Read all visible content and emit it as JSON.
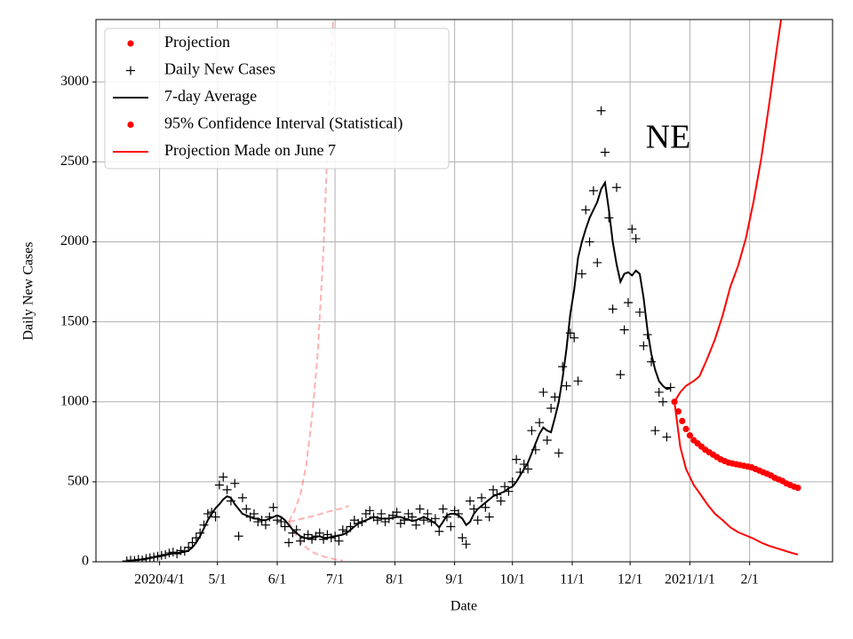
{
  "chart_data": {
    "type": "line",
    "annotation": "NE",
    "xlabel": "Date",
    "ylabel": "Daily New Cases",
    "grid": true,
    "legend": "upper left",
    "xlim": [
      "2020-02-28",
      "2021-03-16"
    ],
    "ylim": [
      0,
      3390
    ],
    "yticks": [
      0,
      500,
      1000,
      1500,
      2000,
      2500,
      3000
    ],
    "xticks": [
      {
        "value": "2020-04-01",
        "label": "2020/4/1"
      },
      {
        "value": "2020-05-01",
        "label": "5/1"
      },
      {
        "value": "2020-06-01",
        "label": "6/1"
      },
      {
        "value": "2020-07-01",
        "label": "7/1"
      },
      {
        "value": "2020-08-01",
        "label": "8/1"
      },
      {
        "value": "2020-09-01",
        "label": "9/1"
      },
      {
        "value": "2020-10-01",
        "label": "10/1"
      },
      {
        "value": "2020-11-01",
        "label": "11/1"
      },
      {
        "value": "2020-12-01",
        "label": "12/1"
      },
      {
        "value": "2021-01-01",
        "label": "2021/1/1"
      },
      {
        "value": "2021-02-01",
        "label": "2/1"
      }
    ],
    "x": [
      "2020-03-15",
      "2020-03-17",
      "2020-03-19",
      "2020-03-21",
      "2020-03-23",
      "2020-03-25",
      "2020-03-27",
      "2020-03-29",
      "2020-03-31",
      "2020-04-02",
      "2020-04-04",
      "2020-04-06",
      "2020-04-08",
      "2020-04-10",
      "2020-04-12",
      "2020-04-14",
      "2020-04-16",
      "2020-04-18",
      "2020-04-20",
      "2020-04-22",
      "2020-04-24",
      "2020-04-26",
      "2020-04-28",
      "2020-04-30",
      "2020-05-02",
      "2020-05-04",
      "2020-05-06",
      "2020-05-08",
      "2020-05-10",
      "2020-05-12",
      "2020-05-14",
      "2020-05-16",
      "2020-05-18",
      "2020-05-20",
      "2020-05-22",
      "2020-05-24",
      "2020-05-26",
      "2020-05-28",
      "2020-05-30",
      "2020-06-01",
      "2020-06-03",
      "2020-06-05",
      "2020-06-07",
      "2020-06-09",
      "2020-06-11",
      "2020-06-13",
      "2020-06-15",
      "2020-06-17",
      "2020-06-19",
      "2020-06-21",
      "2020-06-23",
      "2020-06-25",
      "2020-06-27",
      "2020-06-29",
      "2020-07-01",
      "2020-07-03",
      "2020-07-05",
      "2020-07-07",
      "2020-07-09",
      "2020-07-11",
      "2020-07-13",
      "2020-07-15",
      "2020-07-17",
      "2020-07-19",
      "2020-07-21",
      "2020-07-23",
      "2020-07-25",
      "2020-07-27",
      "2020-07-29",
      "2020-07-31",
      "2020-08-02",
      "2020-08-04",
      "2020-08-06",
      "2020-08-08",
      "2020-08-10",
      "2020-08-12",
      "2020-08-14",
      "2020-08-16",
      "2020-08-18",
      "2020-08-20",
      "2020-08-22",
      "2020-08-24",
      "2020-08-26",
      "2020-08-28",
      "2020-08-30",
      "2020-09-01",
      "2020-09-03",
      "2020-09-05",
      "2020-09-07",
      "2020-09-09",
      "2020-09-11",
      "2020-09-13",
      "2020-09-15",
      "2020-09-17",
      "2020-09-19",
      "2020-09-21",
      "2020-09-23",
      "2020-09-25",
      "2020-09-27",
      "2020-09-29",
      "2020-10-01",
      "2020-10-03",
      "2020-10-05",
      "2020-10-07",
      "2020-10-09",
      "2020-10-11",
      "2020-10-13",
      "2020-10-15",
      "2020-10-17",
      "2020-10-19",
      "2020-10-21",
      "2020-10-23",
      "2020-10-25",
      "2020-10-27",
      "2020-10-29",
      "2020-10-31",
      "2020-11-02",
      "2020-11-04",
      "2020-11-06",
      "2020-11-08",
      "2020-11-10",
      "2020-11-12",
      "2020-11-14",
      "2020-11-16",
      "2020-11-18",
      "2020-11-20",
      "2020-11-22",
      "2020-11-24",
      "2020-11-26",
      "2020-11-28",
      "2020-11-30",
      "2020-12-02",
      "2020-12-04",
      "2020-12-06",
      "2020-12-08",
      "2020-12-10",
      "2020-12-12",
      "2020-12-14",
      "2020-12-16",
      "2020-12-18",
      "2020-12-20",
      "2020-12-22"
    ],
    "series": [
      {
        "name": "Projection",
        "kind": "dots",
        "legend_marker": "dot",
        "color": "#ff0000",
        "x": [
          "2020-12-24",
          "2020-12-26",
          "2020-12-28",
          "2020-12-30",
          "2021-01-01",
          "2021-01-03",
          "2021-01-05",
          "2021-01-07",
          "2021-01-09",
          "2021-01-11",
          "2021-01-13",
          "2021-01-15",
          "2021-01-17",
          "2021-01-19",
          "2021-01-21",
          "2021-01-23",
          "2021-01-25",
          "2021-01-27",
          "2021-01-29",
          "2021-01-31",
          "2021-02-02",
          "2021-02-04",
          "2021-02-06",
          "2021-02-08",
          "2021-02-10",
          "2021-02-12",
          "2021-02-14",
          "2021-02-16",
          "2021-02-18",
          "2021-02-20",
          "2021-02-22",
          "2021-02-24",
          "2021-02-26"
        ],
        "values": [
          1000,
          940,
          880,
          830,
          790,
          760,
          740,
          720,
          700,
          685,
          670,
          655,
          640,
          630,
          620,
          615,
          610,
          605,
          600,
          595,
          590,
          580,
          570,
          560,
          550,
          540,
          525,
          515,
          505,
          490,
          480,
          470,
          462
        ]
      },
      {
        "name": "Daily New Cases",
        "kind": "plus",
        "legend_marker": "plus",
        "color": "#000000",
        "values": [
          5,
          10,
          8,
          15,
          12,
          20,
          25,
          30,
          35,
          40,
          45,
          55,
          60,
          50,
          70,
          65,
          90,
          120,
          150,
          180,
          230,
          300,
          310,
          280,
          480,
          530,
          450,
          380,
          490,
          160,
          400,
          330,
          280,
          300,
          250,
          260,
          230,
          280,
          340,
          260,
          250,
          220,
          120,
          180,
          200,
          130,
          150,
          170,
          140,
          160,
          180,
          140,
          170,
          150,
          160,
          130,
          200,
          190,
          220,
          260,
          240,
          250,
          300,
          320,
          280,
          260,
          300,
          250,
          270,
          290,
          310,
          240,
          260,
          300,
          280,
          230,
          330,
          260,
          300,
          250,
          270,
          190,
          330,
          280,
          220,
          320,
          300,
          150,
          110,
          380,
          330,
          260,
          400,
          340,
          280,
          450,
          420,
          380,
          470,
          440,
          500,
          640,
          560,
          610,
          580,
          820,
          700,
          870,
          1060,
          760,
          960,
          1030,
          680,
          1220,
          1100,
          1430,
          1400,
          1130,
          1800,
          2200,
          2000,
          2320,
          1870,
          2820,
          2560,
          2150,
          1580,
          2340,
          1170,
          1450,
          1620,
          2080,
          2020,
          1560,
          1350,
          1420,
          1250,
          820,
          1060,
          1000,
          780,
          1090
        ]
      },
      {
        "name": "7-day Average",
        "kind": "line",
        "legend_marker": "line",
        "color": "#000000",
        "values": [
          5,
          8,
          10,
          12,
          15,
          18,
          22,
          28,
          32,
          36,
          42,
          48,
          52,
          55,
          58,
          62,
          70,
          90,
          120,
          160,
          210,
          260,
          300,
          335,
          360,
          390,
          410,
          400,
          360,
          330,
          300,
          290,
          280,
          270,
          270,
          260,
          260,
          270,
          280,
          290,
          280,
          260,
          230,
          200,
          180,
          160,
          150,
          145,
          150,
          155,
          160,
          150,
          150,
          155,
          160,
          165,
          170,
          180,
          200,
          220,
          240,
          250,
          260,
          270,
          280,
          275,
          270,
          270,
          270,
          275,
          280,
          280,
          270,
          265,
          255,
          260,
          270,
          280,
          270,
          255,
          240,
          215,
          250,
          290,
          300,
          300,
          290,
          270,
          230,
          250,
          300,
          330,
          350,
          370,
          390,
          410,
          420,
          430,
          440,
          460,
          470,
          500,
          540,
          580,
          620,
          680,
          740,
          800,
          840,
          820,
          810,
          900,
          1000,
          1150,
          1330,
          1550,
          1700,
          1900,
          2000,
          2080,
          2150,
          2200,
          2250,
          2330,
          2370,
          2200,
          2000,
          1860,
          1750,
          1800,
          1810,
          1790,
          1820,
          1800,
          1650,
          1450,
          1300,
          1200,
          1130,
          1100,
          1080,
          1085
        ]
      },
      {
        "name": "95% Confidence Interval (Statistical)",
        "kind": "lines",
        "legend_marker": "dot",
        "color": "#ff0000",
        "lines": [
          {
            "x": [
              "2020-12-24",
              "2020-12-27",
              "2020-12-30",
              "2021-01-03",
              "2021-01-06",
              "2021-01-10",
              "2021-01-14",
              "2021-01-18",
              "2021-01-22",
              "2021-01-26",
              "2021-01-30",
              "2021-02-03",
              "2021-02-07",
              "2021-02-11",
              "2021-02-15",
              "2021-02-18"
            ],
            "values": [
              1000,
              1060,
              1100,
              1130,
              1160,
              1270,
              1390,
              1540,
              1720,
              1850,
              2020,
              2250,
              2520,
              2850,
              3200,
              3450
            ]
          },
          {
            "x": [
              "2020-12-24",
              "2020-12-27",
              "2020-12-30",
              "2021-01-03",
              "2021-01-06",
              "2021-01-10",
              "2021-01-14",
              "2021-01-18",
              "2021-01-22",
              "2021-01-26",
              "2021-01-30",
              "2021-02-03",
              "2021-02-07",
              "2021-02-11",
              "2021-02-15",
              "2021-02-19",
              "2021-02-23",
              "2021-02-26"
            ],
            "values": [
              1000,
              720,
              580,
              480,
              430,
              360,
              300,
              260,
              215,
              185,
              165,
              145,
              120,
              100,
              85,
              70,
              55,
              45
            ]
          }
        ]
      },
      {
        "name": "Projection Made on June 7",
        "kind": "lines",
        "legend_marker": "line",
        "color": "#ff0000",
        "dashed": true,
        "opacity": 0.3,
        "lines": [
          {
            "x": [
              "2020-06-07",
              "2020-06-10",
              "2020-06-13",
              "2020-06-16",
              "2020-06-19",
              "2020-06-22",
              "2020-06-25",
              "2020-06-28",
              "2020-06-30"
            ],
            "values": [
              250,
              320,
              420,
              600,
              900,
              1300,
              1950,
              2900,
              3390
            ]
          },
          {
            "x": [
              "2020-06-07",
              "2020-06-14",
              "2020-06-21",
              "2020-06-28",
              "2020-07-05",
              "2020-07-08"
            ],
            "values": [
              250,
              270,
              290,
              315,
              335,
              350
            ]
          },
          {
            "x": [
              "2020-06-07",
              "2020-06-10",
              "2020-06-14",
              "2020-06-18",
              "2020-06-22",
              "2020-06-26",
              "2020-07-01",
              "2020-07-05"
            ],
            "values": [
              250,
              180,
              110,
              70,
              45,
              30,
              15,
              8
            ]
          }
        ]
      }
    ]
  }
}
